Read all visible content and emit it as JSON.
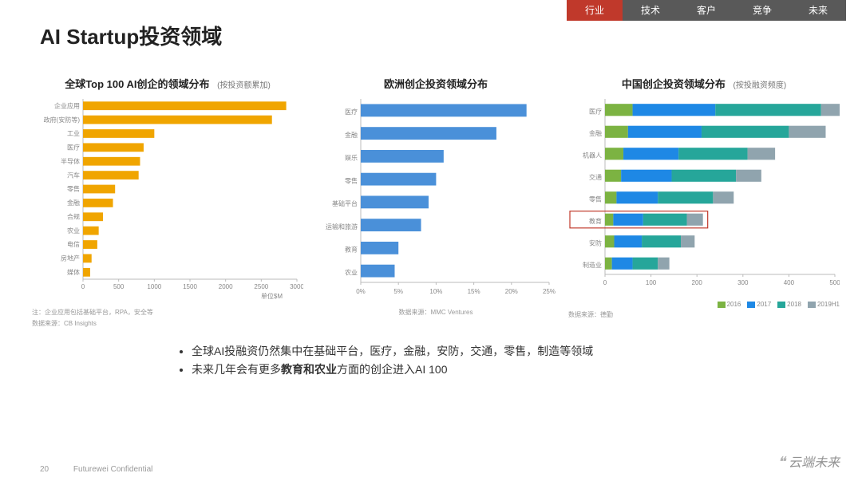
{
  "nav": {
    "items": [
      "行业",
      "技术",
      "客户",
      "竞争",
      "未来"
    ],
    "active_index": 0,
    "active_bg": "#c0392b",
    "inactive_bg": "#595959",
    "text_color": "#ffffff"
  },
  "title": "AI Startup投资领域",
  "page_number": "20",
  "confidential": "Futurewei Confidential",
  "watermark": "云端未来",
  "bullets": {
    "line1_pre": "全球AI投融资仍然集中在基础平台，医疗，金融，安防，交通，零售，制造等领域",
    "line2_pre": "未来几年会有更多",
    "line2_bold": "教育和农业",
    "line2_post": "方面的创企进入AI 100"
  },
  "chart1": {
    "title": "全球Top 100 AI创企的领域分布",
    "subtitle": "(按投资额累加)",
    "categories": [
      "企业应用",
      "政府(安防等)",
      "工业",
      "医疗",
      "半导体",
      "汽车",
      "零售",
      "金融",
      "合规",
      "农业",
      "电信",
      "房地产",
      "媒体"
    ],
    "values": [
      2850,
      2650,
      1000,
      850,
      800,
      780,
      450,
      420,
      280,
      220,
      200,
      120,
      100
    ],
    "bar_color": "#f0a500",
    "x_ticks": [
      0,
      500,
      1000,
      1500,
      2000,
      2500,
      3000
    ],
    "x_unit_label": "单位$M",
    "foot1": "注：企业应用包括基础平台，RPA，安全等",
    "foot2": "数据来源：CB Insights"
  },
  "chart2": {
    "title": "欧洲创企投资领域分布",
    "subtitle": "",
    "categories": [
      "医疗",
      "金融",
      "娱乐",
      "零售",
      "基础平台",
      "运输和旅游",
      "教育",
      "农业"
    ],
    "values": [
      22,
      18,
      11,
      10,
      9,
      8,
      5,
      4.5
    ],
    "bar_color": "#4a90d9",
    "x_ticks": [
      0,
      5,
      10,
      15,
      20,
      25
    ],
    "x_tick_labels": [
      "0%",
      "5%",
      "10%",
      "15%",
      "20%",
      "25%"
    ],
    "foot": "数据来源：MMC Ventures"
  },
  "chart3": {
    "title": "中国创企投资领域分布",
    "subtitle": "(按投融资频度)",
    "categories": [
      "医疗",
      "金融",
      "机器人",
      "交通",
      "零售",
      "教育",
      "安防",
      "制造业"
    ],
    "series_names": [
      "2016",
      "2017",
      "2018",
      "2019H1"
    ],
    "series_colors": [
      "#7cb342",
      "#1e88e5",
      "#26a69a",
      "#90a4ae"
    ],
    "data": [
      [
        60,
        180,
        230,
        100
      ],
      [
        50,
        160,
        190,
        80
      ],
      [
        40,
        120,
        150,
        60
      ],
      [
        35,
        110,
        140,
        55
      ],
      [
        25,
        90,
        120,
        45
      ],
      [
        18,
        65,
        95,
        35
      ],
      [
        20,
        60,
        85,
        30
      ],
      [
        15,
        45,
        55,
        25
      ]
    ],
    "x_ticks": [
      0,
      100,
      200,
      300,
      400,
      500
    ],
    "foot": "数据来源：德勤",
    "highlight_row_index": 5
  }
}
